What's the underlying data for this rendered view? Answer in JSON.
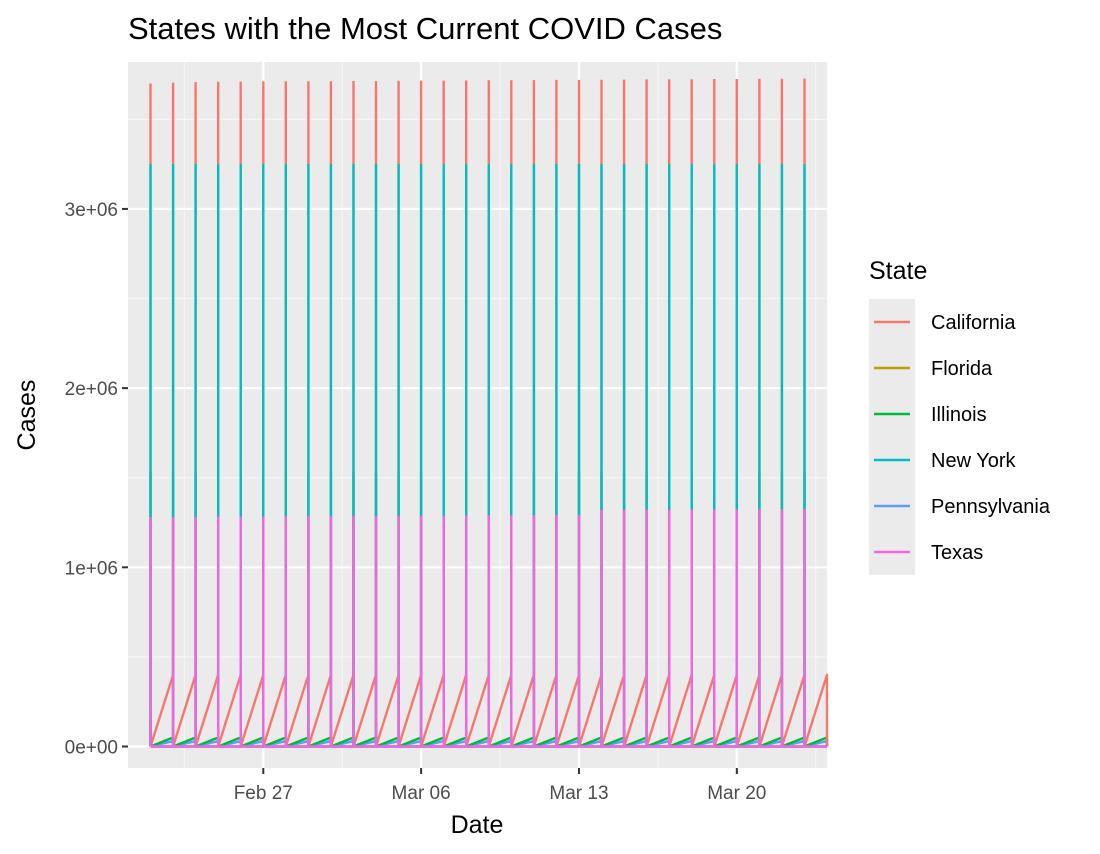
{
  "chart_data": {
    "type": "line",
    "title": "States with the Most Current COVID Cases",
    "xlabel": "Date",
    "ylabel": "Cases",
    "x_start": "Feb 21",
    "x_end": "Mar 24",
    "x_tick_labels": [
      "Feb 27",
      "Mar 06",
      "Mar 13",
      "Mar 20"
    ],
    "x_tick_dates": [
      "Feb 27",
      "Mar 06",
      "Mar 13",
      "Mar 20"
    ],
    "ylim": [
      -120000,
      3820000
    ],
    "y_ticks": [
      0,
      1000000,
      2000000,
      3000000
    ],
    "y_tick_labels": [
      "0e+00",
      "1e+06",
      "2e+06",
      "3e+06"
    ],
    "grid": true,
    "legend": {
      "title": "State",
      "position": "right"
    },
    "series": [
      {
        "name": "California",
        "color": "#F8766D",
        "pattern": [
          0,
          3700000,
          400000
        ]
      },
      {
        "name": "Florida",
        "color": "#B79F00",
        "pattern": [
          0,
          0,
          0
        ]
      },
      {
        "name": "Illinois",
        "color": "#00BA38",
        "pattern": [
          0,
          1530000,
          50000
        ]
      },
      {
        "name": "New York",
        "color": "#00BFC4",
        "pattern": [
          0,
          3250000,
          0
        ]
      },
      {
        "name": "Pennsylvania",
        "color": "#619CFF",
        "pattern": [
          0,
          130000,
          30000
        ]
      },
      {
        "name": "Texas",
        "color": "#F564E3",
        "pattern": [
          0,
          1285000,
          0
        ]
      }
    ],
    "days": [
      "Feb 22",
      "Feb 23",
      "Feb 24",
      "Feb 25",
      "Feb 26",
      "Feb 27",
      "Feb 28",
      "Mar 01",
      "Mar 02",
      "Mar 03",
      "Mar 04",
      "Mar 05",
      "Mar 06",
      "Mar 07",
      "Mar 08",
      "Mar 09",
      "Mar 10",
      "Mar 11",
      "Mar 12",
      "Mar 13",
      "Mar 14",
      "Mar 15",
      "Mar 16",
      "Mar 17",
      "Mar 18",
      "Mar 19",
      "Mar 20",
      "Mar 21",
      "Mar 22",
      "Mar 23"
    ],
    "california_peaks": [
      3700000,
      3705000,
      3708000,
      3710000,
      3710000,
      3712000,
      3712000,
      3713000,
      3713000,
      3714000,
      3714000,
      3715000,
      3716000,
      3716000,
      3717000,
      3718000,
      3718000,
      3719000,
      3720000,
      3720000,
      3721000,
      3722000,
      3723000,
      3723000,
      3724000,
      3725000,
      3725000,
      3726000,
      3727000,
      3728000
    ],
    "texas_peaks": [
      1280000,
      1280000,
      1281000,
      1282000,
      1282000,
      1283000,
      1284000,
      1285000,
      1285000,
      1286000,
      1286000,
      1287000,
      1287000,
      1288000,
      1289000,
      1290000,
      1290000,
      1291000,
      1292000,
      1292000,
      1320000,
      1320000,
      1321000,
      1321000,
      1322000,
      1322000,
      1323000,
      1323000,
      1324000,
      1325000
    ]
  }
}
